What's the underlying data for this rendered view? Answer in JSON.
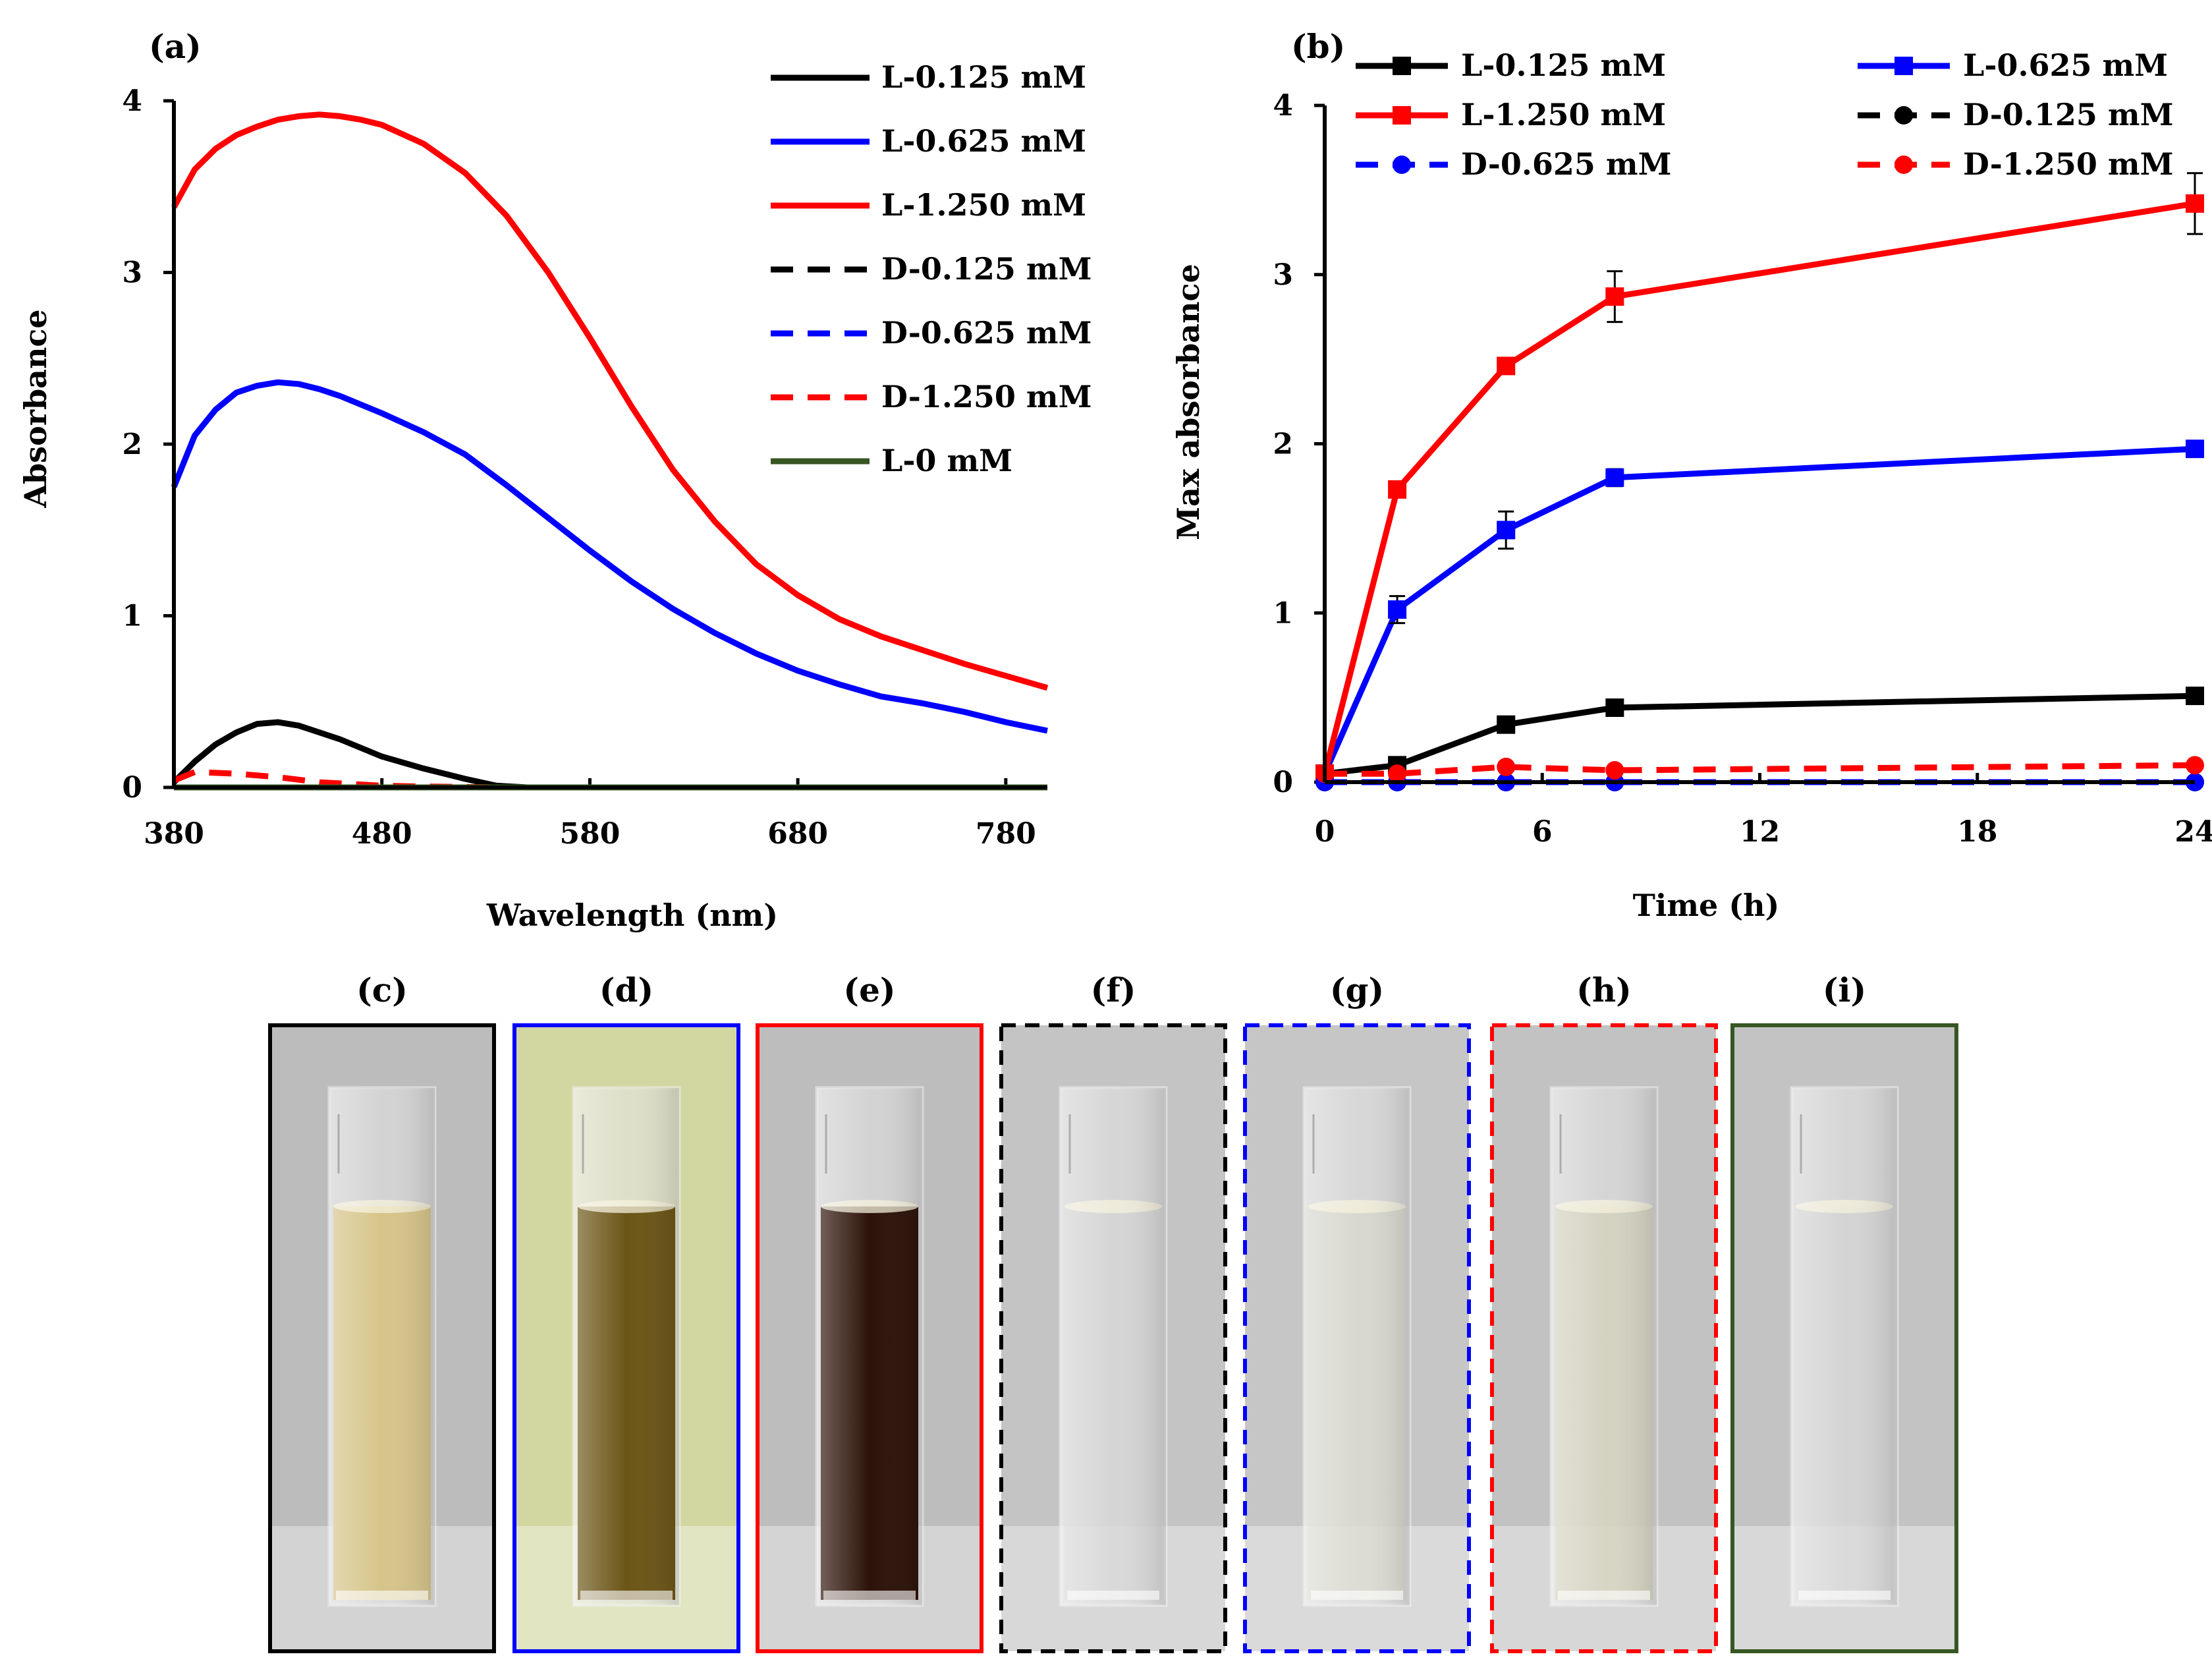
{
  "chart_data": [
    {
      "id": "a",
      "panel_label": "(a)",
      "type": "line",
      "title": "",
      "xlabel": "Wavelength (nm)",
      "ylabel": "Absorbance",
      "xlim": [
        380,
        800
      ],
      "ylim": [
        0,
        4
      ],
      "xticks": [
        380,
        480,
        580,
        680,
        780
      ],
      "yticks": [
        0,
        1,
        2,
        3,
        4
      ],
      "grid": false,
      "legend_position": "top-right",
      "series": [
        {
          "name": "L-0.125 mM",
          "color": "#000000",
          "dash": false,
          "x": [
            380,
            390,
            400,
            410,
            420,
            430,
            440,
            450,
            460,
            480,
            500,
            520,
            535,
            550,
            600,
            700,
            800
          ],
          "y": [
            0.03,
            0.15,
            0.25,
            0.32,
            0.37,
            0.38,
            0.36,
            0.32,
            0.28,
            0.18,
            0.11,
            0.05,
            0.01,
            0,
            0,
            0,
            0
          ]
        },
        {
          "name": "L-0.625 mM",
          "color": "#0000ff",
          "dash": false,
          "x": [
            380,
            390,
            400,
            410,
            420,
            430,
            440,
            450,
            460,
            480,
            500,
            520,
            540,
            560,
            580,
            600,
            620,
            640,
            660,
            680,
            700,
            720,
            740,
            760,
            780,
            800
          ],
          "y": [
            1.75,
            2.05,
            2.2,
            2.3,
            2.34,
            2.36,
            2.35,
            2.32,
            2.28,
            2.18,
            2.07,
            1.94,
            1.76,
            1.57,
            1.38,
            1.2,
            1.04,
            0.9,
            0.78,
            0.68,
            0.6,
            0.53,
            0.49,
            0.44,
            0.38,
            0.33
          ]
        },
        {
          "name": "L-1.250 mM",
          "color": "#ff0000",
          "dash": false,
          "x": [
            380,
            390,
            400,
            410,
            420,
            430,
            440,
            450,
            460,
            470,
            480,
            500,
            520,
            540,
            560,
            580,
            600,
            620,
            640,
            660,
            680,
            700,
            720,
            740,
            760,
            780,
            800
          ],
          "y": [
            3.38,
            3.6,
            3.72,
            3.8,
            3.85,
            3.89,
            3.91,
            3.92,
            3.91,
            3.89,
            3.86,
            3.75,
            3.58,
            3.33,
            3.0,
            2.62,
            2.22,
            1.85,
            1.55,
            1.3,
            1.12,
            0.98,
            0.88,
            0.8,
            0.72,
            0.65,
            0.58
          ]
        },
        {
          "name": "D-0.125 mM",
          "color": "#000000",
          "dash": true,
          "x": [
            380,
            800
          ],
          "y": [
            0,
            0
          ]
        },
        {
          "name": "D-0.625 mM",
          "color": "#0000ff",
          "dash": true,
          "x": [
            380,
            800
          ],
          "y": [
            0,
            0
          ]
        },
        {
          "name": "D-1.250 mM",
          "color": "#ff0000",
          "dash": true,
          "x": [
            380,
            390,
            410,
            430,
            450,
            480,
            500,
            540,
            800
          ],
          "y": [
            0.04,
            0.09,
            0.08,
            0.06,
            0.03,
            0.01,
            0.005,
            0,
            0
          ]
        },
        {
          "name": "L-0 mM",
          "color": "#375623",
          "dash": false,
          "x": [
            380,
            800
          ],
          "y": [
            0,
            0
          ]
        }
      ]
    },
    {
      "id": "b",
      "panel_label": "(b)",
      "type": "line",
      "title": "",
      "xlabel": "Time (h)",
      "ylabel": "Max absorbance",
      "xlim": [
        0,
        24
      ],
      "ylim": [
        0,
        4
      ],
      "xticks": [
        0,
        6,
        12,
        18,
        24
      ],
      "yticks": [
        0,
        1,
        2,
        3,
        4
      ],
      "grid": false,
      "legend_position": "top",
      "series": [
        {
          "name": "L-0.125 mM",
          "color": "#000000",
          "dash": false,
          "marker": "square",
          "x": [
            0,
            2,
            5,
            8,
            24
          ],
          "y": [
            0.05,
            0.1,
            0.34,
            0.44,
            0.51
          ],
          "err": [
            0,
            0,
            0,
            0,
            0
          ]
        },
        {
          "name": "L-0.625 mM",
          "color": "#0000ff",
          "dash": false,
          "marker": "square",
          "x": [
            0,
            2,
            5,
            8,
            24
          ],
          "y": [
            0.05,
            1.02,
            1.49,
            1.8,
            1.97
          ],
          "err": [
            0,
            0.08,
            0.11,
            0.05,
            0.03
          ]
        },
        {
          "name": "L-1.250 mM",
          "color": "#ff0000",
          "dash": false,
          "marker": "square",
          "x": [
            0,
            2,
            5,
            8,
            24
          ],
          "y": [
            0.05,
            1.73,
            2.46,
            2.87,
            3.42
          ],
          "err": [
            0,
            0,
            0,
            0.15,
            0.18
          ]
        },
        {
          "name": "D-0.125 mM",
          "color": "#000000",
          "dash": true,
          "marker": "circle",
          "x": [
            0,
            2,
            5,
            8,
            24
          ],
          "y": [
            0,
            0,
            0,
            0,
            0
          ],
          "err": [
            0,
            0,
            0,
            0,
            0
          ]
        },
        {
          "name": "D-0.625 mM",
          "color": "#0000ff",
          "dash": true,
          "marker": "circle",
          "x": [
            0,
            2,
            5,
            8,
            24
          ],
          "y": [
            0,
            0,
            0,
            0,
            0
          ],
          "err": [
            0,
            0,
            0,
            0,
            0
          ]
        },
        {
          "name": "D-1.250 mM",
          "color": "#ff0000",
          "dash": true,
          "marker": "circle",
          "x": [
            0,
            2,
            5,
            8,
            24
          ],
          "y": [
            0.05,
            0.05,
            0.09,
            0.07,
            0.1
          ],
          "err": [
            0,
            0,
            0,
            0,
            0
          ]
        }
      ]
    }
  ],
  "photos": [
    {
      "label": "(c)",
      "border_color": "#000000",
      "border_dash": false,
      "bg": "#bcbcbc",
      "liquid": "#d6c489",
      "liquid_alpha": 1,
      "depicts": "L-0.125 mM"
    },
    {
      "label": "(d)",
      "border_color": "#0000ff",
      "border_dash": false,
      "bg": "#d2d7a2",
      "liquid": "#6b5516",
      "liquid_alpha": 1,
      "depicts": "L-0.625 mM"
    },
    {
      "label": "(e)",
      "border_color": "#ff0000",
      "border_dash": false,
      "bg": "#bdbdbd",
      "liquid": "#2c1208",
      "liquid_alpha": 1,
      "depicts": "L-1.250 mM"
    },
    {
      "label": "(f)",
      "border_color": "#000000",
      "border_dash": true,
      "bg": "#c4c4c4",
      "liquid": "#d4d4d4",
      "liquid_alpha": 0.5,
      "depicts": "D-0.125 mM"
    },
    {
      "label": "(g)",
      "border_color": "#0000ff",
      "border_dash": true,
      "bg": "#c6c6c6",
      "liquid": "#d9d8cc",
      "liquid_alpha": 0.6,
      "depicts": "D-0.625 mM"
    },
    {
      "label": "(h)",
      "border_color": "#ff0000",
      "border_dash": true,
      "bg": "#c2c2c2",
      "liquid": "#d3d0b8",
      "liquid_alpha": 0.7,
      "depicts": "D-1.250 mM"
    },
    {
      "label": "(i)",
      "border_color": "#375623",
      "border_dash": false,
      "bg": "#c3c3c3",
      "liquid": "#d2d2d2",
      "liquid_alpha": 0.4,
      "depicts": "L-0 mM"
    }
  ]
}
